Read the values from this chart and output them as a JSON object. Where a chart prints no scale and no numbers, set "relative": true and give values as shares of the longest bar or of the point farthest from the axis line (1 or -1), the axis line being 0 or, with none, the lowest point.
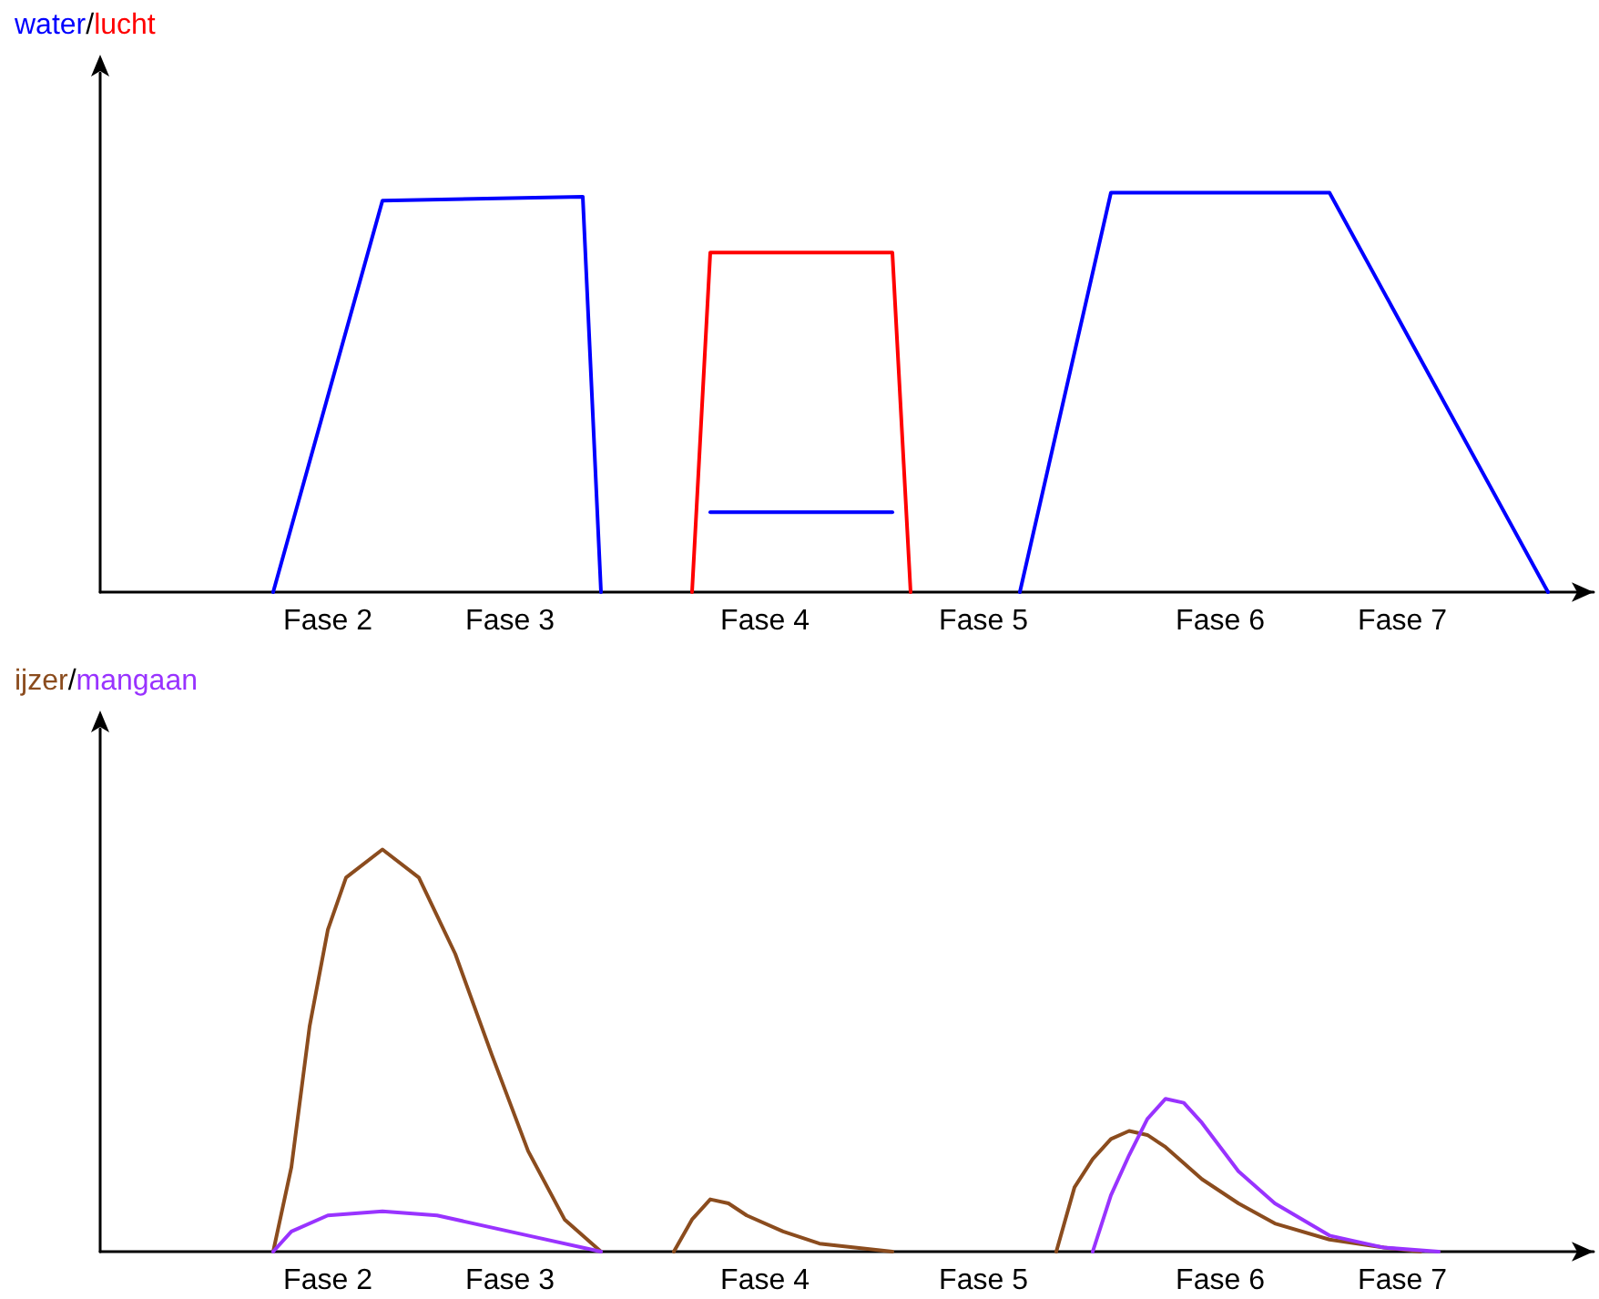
{
  "chart_data": [
    {
      "type": "line",
      "relative": true,
      "legend": "top left",
      "annotations": [
        "/"
      ],
      "marker": "none",
      "line_style": "solid",
      "grid": false,
      "tick_labels": "x",
      "categories": [
        null,
        null,
        null,
        null,
        null,
        null,
        null,
        null,
        null,
        null,
        null,
        null,
        "Fase 2",
        null,
        null,
        null,
        null,
        null,
        null,
        null,
        null,
        null,
        "Fase 3",
        null,
        null,
        null,
        null,
        null,
        null,
        null,
        null,
        null,
        null,
        null,
        null,
        null,
        "Fase 4",
        null,
        null,
        null,
        null,
        null,
        null,
        null,
        null,
        null,
        null,
        null,
        "Fase 5",
        null,
        null,
        null,
        null,
        null,
        null,
        null,
        null,
        null,
        null,
        null,
        null,
        "Fase 6",
        null,
        null,
        null,
        null,
        null,
        null,
        null,
        null,
        null,
        "Fase 7",
        null,
        null,
        null,
        null,
        null,
        null,
        null,
        null,
        null,
        null
      ],
      "series": [
        {
          "name": "water",
          "color": "#0000ff",
          "values": [
            null,
            null,
            null,
            null,
            null,
            null,
            null,
            null,
            null,
            0,
            null,
            null,
            null,
            null,
            null,
            0.98,
            null,
            null,
            null,
            null,
            null,
            null,
            null,
            null,
            null,
            null,
            0.99,
            0,
            null,
            null,
            null,
            null,
            null,
            null,
            null,
            null,
            null,
            null,
            null,
            null,
            null,
            null,
            null,
            null,
            null,
            null,
            null,
            null,
            null,
            null,
            null,
            null,
            null,
            null,
            null,
            null,
            null,
            null,
            null,
            null,
            null,
            null,
            null,
            null,
            null,
            null,
            null,
            null,
            null,
            null,
            null,
            null,
            null,
            null,
            null,
            null,
            null,
            null,
            null,
            null,
            null,
            null
          ]
        },
        {
          "color": "#0000ff",
          "values": [
            null,
            null,
            null,
            null,
            null,
            null,
            null,
            null,
            null,
            null,
            null,
            null,
            null,
            null,
            null,
            null,
            null,
            null,
            null,
            null,
            null,
            null,
            null,
            null,
            null,
            null,
            null,
            null,
            null,
            null,
            null,
            null,
            null,
            0.2,
            null,
            null,
            null,
            null,
            null,
            null,
            null,
            null,
            null,
            0.2,
            null,
            null,
            null,
            null,
            null,
            null,
            null,
            null,
            null,
            null,
            null,
            null,
            null,
            null,
            null,
            null,
            null,
            null,
            null,
            null,
            null,
            null,
            null,
            null,
            null,
            null,
            null,
            null,
            null,
            null,
            null,
            null,
            null,
            null,
            null,
            null,
            null,
            null
          ]
        },
        {
          "color": "#0000ff",
          "values": [
            null,
            null,
            null,
            null,
            null,
            null,
            null,
            null,
            null,
            null,
            null,
            null,
            null,
            null,
            null,
            null,
            null,
            null,
            null,
            null,
            null,
            null,
            null,
            null,
            null,
            null,
            null,
            null,
            null,
            null,
            null,
            null,
            null,
            null,
            null,
            null,
            null,
            null,
            null,
            null,
            null,
            null,
            null,
            null,
            null,
            null,
            null,
            null,
            null,
            null,
            0,
            null,
            null,
            null,
            null,
            1.0,
            null,
            null,
            null,
            null,
            null,
            null,
            null,
            null,
            null,
            null,
            null,
            1.0,
            null,
            null,
            null,
            null,
            null,
            null,
            null,
            null,
            null,
            null,
            null,
            0,
            null,
            null
          ]
        },
        {
          "name": "lucht",
          "color": "#ff0000",
          "values": [
            null,
            null,
            null,
            null,
            null,
            null,
            null,
            null,
            null,
            null,
            null,
            null,
            null,
            null,
            null,
            null,
            null,
            null,
            null,
            null,
            null,
            null,
            null,
            null,
            null,
            null,
            null,
            null,
            null,
            null,
            null,
            null,
            0,
            0.85,
            null,
            null,
            null,
            null,
            null,
            null,
            null,
            null,
            null,
            0.85,
            0,
            null,
            null,
            null,
            null,
            null,
            null,
            null,
            null,
            null,
            null,
            null,
            null,
            null,
            null,
            null,
            null,
            null,
            null,
            null,
            null,
            null,
            null,
            null,
            null,
            null,
            null,
            null,
            null,
            null,
            null,
            null,
            null,
            null,
            null,
            null,
            null,
            null
          ]
        }
      ]
    },
    {
      "type": "line",
      "relative": true,
      "legend": "top left",
      "annotations": [
        "/"
      ],
      "marker": "none",
      "line_style": "solid",
      "grid": false,
      "tick_labels": "x",
      "categories": [
        null,
        null,
        null,
        null,
        null,
        null,
        null,
        null,
        null,
        null,
        null,
        null,
        "Fase 2",
        null,
        null,
        null,
        null,
        null,
        null,
        null,
        null,
        null,
        "Fase 3",
        null,
        null,
        null,
        null,
        null,
        null,
        null,
        null,
        null,
        null,
        null,
        null,
        null,
        "Fase 4",
        null,
        null,
        null,
        null,
        null,
        null,
        null,
        null,
        null,
        null,
        null,
        "Fase 5",
        null,
        null,
        null,
        null,
        null,
        null,
        null,
        null,
        null,
        null,
        null,
        null,
        "Fase 6",
        null,
        null,
        null,
        null,
        null,
        null,
        null,
        null,
        null,
        "Fase 7",
        null,
        null,
        null,
        null,
        null,
        null,
        null,
        null,
        null,
        null
      ],
      "series": [
        {
          "name": "ijzer",
          "color": "#8b4c1e",
          "values": [
            null,
            null,
            null,
            null,
            null,
            null,
            null,
            null,
            null,
            0,
            0.21,
            0.56,
            0.8,
            0.93,
            null,
            1.0,
            null,
            0.93,
            null,
            0.74,
            null,
            0.49,
            null,
            0.25,
            null,
            0.08,
            null,
            0,
            null,
            null,
            null,
            null,
            null,
            null,
            null,
            null,
            null,
            null,
            null,
            null,
            null,
            null,
            null,
            null,
            null,
            null,
            null,
            null,
            null,
            null,
            null,
            null,
            null,
            null,
            null,
            null,
            null,
            null,
            null,
            null,
            null,
            null,
            null,
            null,
            null,
            null,
            null,
            null,
            null,
            null,
            null,
            null,
            null,
            null,
            null,
            null,
            null,
            null,
            null,
            null,
            null,
            null
          ]
        },
        {
          "color": "#8b4c1e",
          "values": [
            null,
            null,
            null,
            null,
            null,
            null,
            null,
            null,
            null,
            null,
            null,
            null,
            null,
            null,
            null,
            null,
            null,
            null,
            null,
            null,
            null,
            null,
            null,
            null,
            null,
            null,
            null,
            null,
            null,
            null,
            null,
            0,
            0.08,
            0.13,
            0.12,
            0.09,
            null,
            0.05,
            null,
            0.02,
            null,
            null,
            null,
            0,
            null,
            null,
            null,
            null,
            null,
            null,
            null,
            null,
            null,
            null,
            null,
            null,
            null,
            null,
            null,
            null,
            null,
            null,
            null,
            null,
            null,
            null,
            null,
            null,
            null,
            null,
            null,
            null,
            null,
            null,
            null,
            null,
            null,
            null,
            null,
            null,
            null,
            null
          ]
        },
        {
          "color": "#8b4c1e",
          "values": [
            null,
            null,
            null,
            null,
            null,
            null,
            null,
            null,
            null,
            null,
            null,
            null,
            null,
            null,
            null,
            null,
            null,
            null,
            null,
            null,
            null,
            null,
            null,
            null,
            null,
            null,
            null,
            null,
            null,
            null,
            null,
            null,
            null,
            null,
            null,
            null,
            null,
            null,
            null,
            null,
            null,
            null,
            null,
            null,
            null,
            null,
            null,
            null,
            null,
            null,
            null,
            null,
            0,
            0.16,
            0.23,
            0.28,
            0.3,
            0.29,
            0.26,
            null,
            0.18,
            null,
            0.12,
            null,
            0.07,
            null,
            null,
            0.03,
            null,
            null,
            0.01,
            null,
            0,
            null,
            null,
            null,
            null,
            null,
            null,
            null,
            null,
            null
          ]
        },
        {
          "name": "mangaan",
          "color": "#9933ff",
          "values": [
            null,
            null,
            null,
            null,
            null,
            null,
            null,
            null,
            null,
            0,
            0.05,
            null,
            0.09,
            null,
            null,
            0.1,
            null,
            null,
            0.09,
            null,
            null,
            null,
            null,
            0.04,
            null,
            null,
            null,
            0,
            null,
            null,
            null,
            null,
            null,
            null,
            null,
            null,
            null,
            null,
            null,
            null,
            null,
            null,
            null,
            null,
            null,
            null,
            null,
            null,
            null,
            null,
            null,
            null,
            null,
            null,
            null,
            null,
            null,
            null,
            null,
            null,
            null,
            null,
            null,
            null,
            null,
            null,
            null,
            null,
            null,
            null,
            null,
            null,
            null,
            null,
            null,
            null,
            null,
            null,
            null,
            null,
            null,
            null
          ]
        },
        {
          "color": "#9933ff",
          "values": [
            null,
            null,
            null,
            null,
            null,
            null,
            null,
            null,
            null,
            null,
            null,
            null,
            null,
            null,
            null,
            null,
            null,
            null,
            null,
            null,
            null,
            null,
            null,
            null,
            null,
            null,
            null,
            null,
            null,
            null,
            null,
            null,
            null,
            null,
            null,
            null,
            null,
            null,
            null,
            null,
            null,
            null,
            null,
            null,
            null,
            null,
            null,
            null,
            null,
            null,
            null,
            null,
            null,
            null,
            0,
            0.14,
            0.24,
            0.33,
            0.38,
            0.37,
            0.32,
            null,
            0.2,
            null,
            0.12,
            null,
            null,
            0.04,
            null,
            null,
            0.01,
            null,
            null,
            0,
            null,
            null,
            null,
            null,
            null,
            null,
            null,
            null
          ]
        }
      ]
    }
  ]
}
